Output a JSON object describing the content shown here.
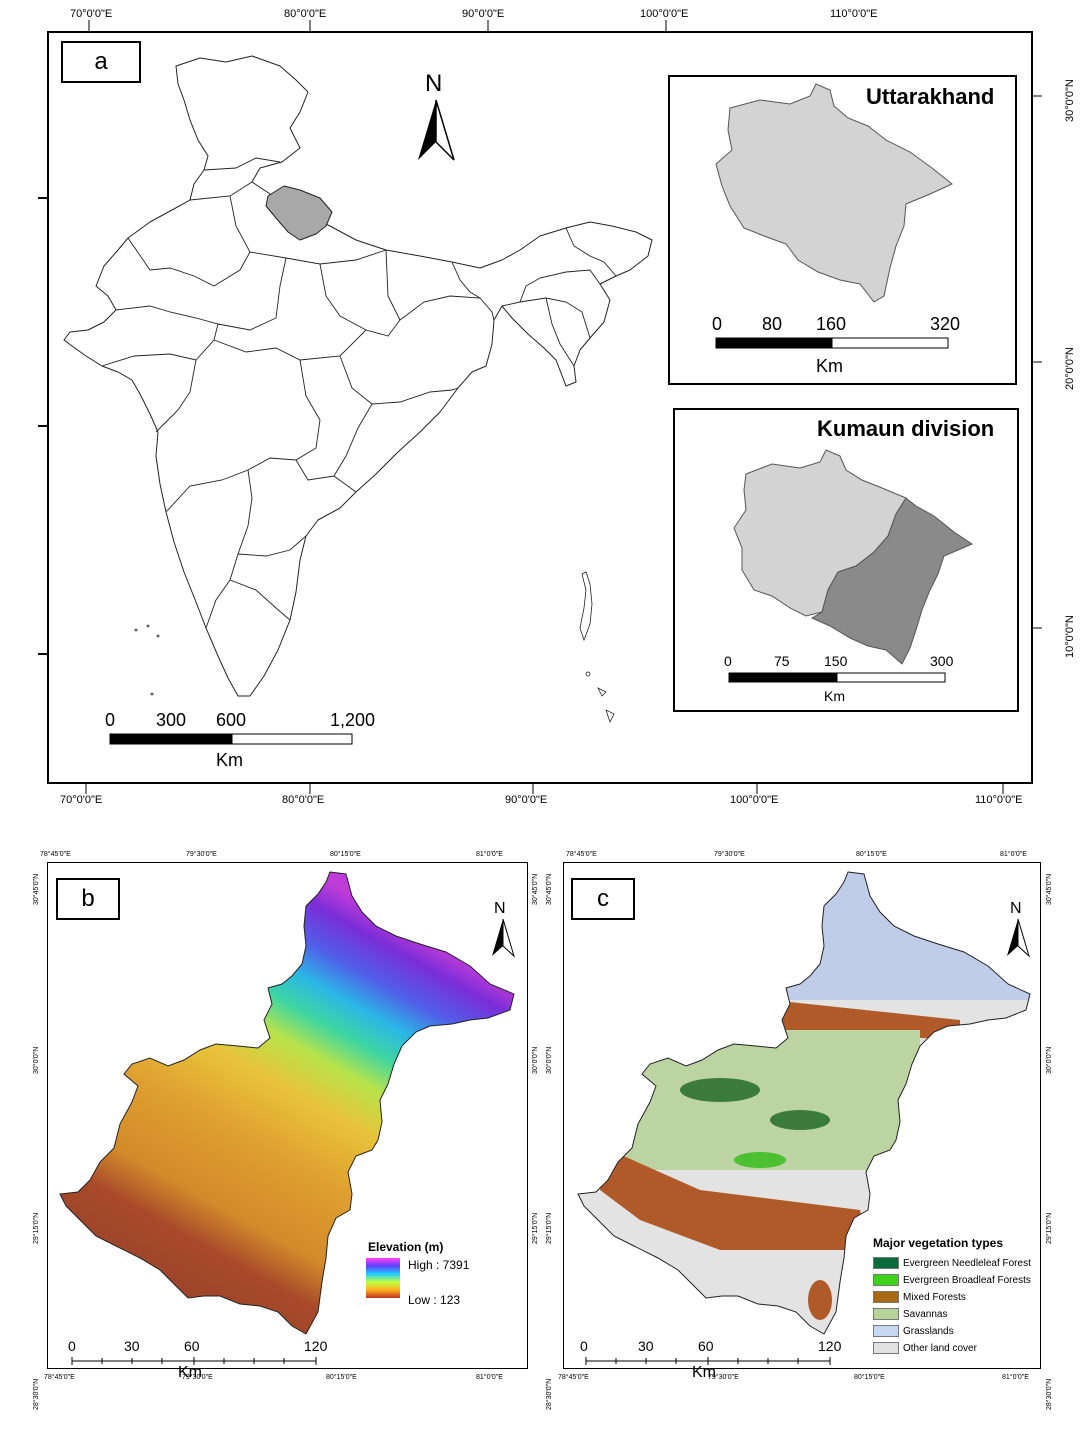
{
  "panel_a": {
    "label": "a",
    "top_ticks": [
      "70°0'0\"E",
      "80°0'0\"E",
      "90°0'0\"E",
      "100°0'0\"E",
      "110°0'0\"E"
    ],
    "bottom_ticks": [
      "70°0'0\"E",
      "80°0'0\"E",
      "90°0'0\"E",
      "100°0'0\"E",
      "110°0'0\"E"
    ],
    "right_ticks": [
      "30°0'0\"N",
      "20°0'0\"N",
      "10°0'0\"N"
    ],
    "north": "N",
    "scale": {
      "labels": [
        "0",
        "300",
        "600",
        "1,200"
      ],
      "unit": "Km"
    },
    "inset_uttarakhand": {
      "title": "Uttarakhand",
      "scale": {
        "labels": [
          "0",
          "80",
          "160",
          "320"
        ],
        "unit": "Km"
      }
    },
    "inset_kumaun": {
      "title": "Kumaun division",
      "scale": {
        "labels": [
          "0",
          "75",
          "150",
          "300"
        ],
        "unit": "Km"
      }
    }
  },
  "panel_b": {
    "label": "b",
    "top_ticks": [
      "78°45'0\"E",
      "79°30'0\"E",
      "80°15'0\"E",
      "81°0'0\"E"
    ],
    "bottom_ticks": [
      "78°45'0\"E",
      "79°30'0\"E",
      "80°15'0\"E",
      "81°0'0\"E"
    ],
    "left_ticks": [
      "30°45'0\"N",
      "30°0'0\"N",
      "29°15'0\"N",
      "28°30'0\"N"
    ],
    "right_ticks": [
      "30°45'0\"N",
      "30°0'0\"N",
      "29°15'0\"N"
    ],
    "north": "N",
    "legend": {
      "title": "Elevation (m)",
      "high": "High : 7391",
      "low": "Low : 123"
    },
    "scale": {
      "labels": [
        "0",
        "30",
        "60",
        "120"
      ],
      "unit": "Km"
    }
  },
  "panel_c": {
    "label": "c",
    "top_ticks": [
      "78°45'0\"E",
      "79°30'0\"E",
      "80°15'0\"E",
      "81°0'0\"E"
    ],
    "bottom_ticks": [
      "78°45'0\"E",
      "79°30'0\"E",
      "80°15'0\"E",
      "81°0'0\"E"
    ],
    "left_ticks": [
      "30°45'0\"N",
      "30°0'0\"N",
      "29°15'0\"N",
      "28°30'0\"N"
    ],
    "right_ticks": [
      "30°45'0\"N",
      "30°0'0\"N",
      "29°15'0\"N",
      "28°30'0\"N"
    ],
    "north": "N",
    "legend": {
      "title": "Major vegetation types",
      "items": [
        {
          "label": "Evergreen Needleleaf Forest",
          "color": "#0b6b3a"
        },
        {
          "label": "Evergreen Broadleaf Forests",
          "color": "#3fd21a"
        },
        {
          "label": "Mixed Forests",
          "color": "#a86a12"
        },
        {
          "label": "Savannas",
          "color": "#b7d39a"
        },
        {
          "label": "Grasslands",
          "color": "#c6d8f2"
        },
        {
          "label": "Other land cover",
          "color": "#e1e1e1"
        }
      ]
    },
    "scale": {
      "labels": [
        "0",
        "30",
        "60",
        "120"
      ],
      "unit": "Km"
    }
  }
}
